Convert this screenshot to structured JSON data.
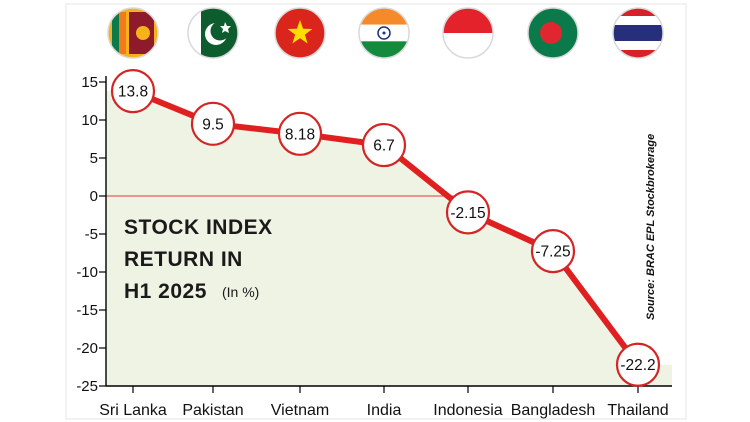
{
  "chart_data": {
    "type": "line",
    "title_lines": [
      "STOCK INDEX",
      "RETURN IN",
      "H1 2025"
    ],
    "unit": "(In %)",
    "source": "Source: BRAC EPL Stockbrokerage",
    "categories": [
      "Sri Lanka",
      "Pakistan",
      "Vietnam",
      "India",
      "Indonesia",
      "Bangladesh",
      "Thailand"
    ],
    "values": [
      13.8,
      9.5,
      8.18,
      6.7,
      -2.15,
      -7.25,
      -22.2
    ],
    "value_labels": [
      "13.8",
      "9.5",
      "8.18",
      "6.7",
      "-2.15",
      "-7.25",
      "-22.2"
    ],
    "ylim": [
      -25,
      15
    ],
    "yticks": [
      15,
      10,
      5,
      0,
      -5,
      -10,
      -15,
      -20,
      -25
    ],
    "ytick_labels": [
      "15",
      "10",
      "5",
      "0",
      "-5",
      "-10",
      "-15",
      "-20",
      "-25"
    ],
    "flags": [
      "sri-lanka-flag-icon",
      "pakistan-flag-icon",
      "vietnam-flag-icon",
      "india-flag-icon",
      "indonesia-flag-icon",
      "bangladesh-flag-icon",
      "thailand-flag-icon"
    ],
    "grid": false,
    "colors": {
      "line": "#e02020",
      "plot_background": "#eef3e3",
      "zero_line": "#e33b3b"
    }
  }
}
